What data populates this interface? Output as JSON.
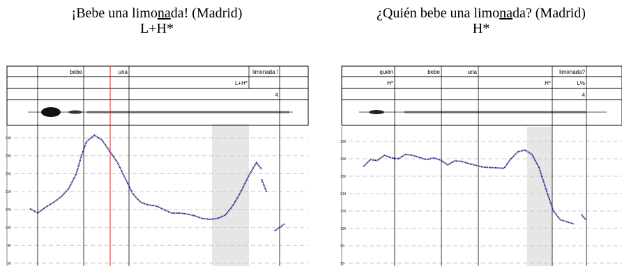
{
  "panels": [
    {
      "title_pre": "¡Bebe una limo",
      "title_u": "na",
      "title_post": "da! (Madrid)",
      "accent": "L+H*",
      "words": [
        "bebe",
        "una",
        "limonada !"
      ],
      "tones": [
        "L+H*"
      ],
      "break_index": "4",
      "yticks": [
        "330",
        "290",
        "250",
        "210",
        "170",
        "130",
        "90",
        "50"
      ],
      "f0_color": "#1a1a80",
      "cursor_color": "#e02020",
      "highlight_color": "#e6e6e6"
    },
    {
      "title_pre": "¿Quién bebe una limo",
      "title_u": "na",
      "title_post": "da? (Madrid)",
      "accent": "H*",
      "words": [
        "quién",
        "bebe",
        "una",
        "limonada?"
      ],
      "tones": [
        "H*",
        "H*",
        "L%"
      ],
      "break_index": "4",
      "yticks": [
        "330",
        "290",
        "250",
        "210",
        "170",
        "130",
        "90",
        "50"
      ],
      "f0_color": "#1a1a80",
      "highlight_color": "#e6e6e6"
    }
  ],
  "chart_data": [
    {
      "type": "line",
      "yticks": [
        330,
        290,
        250,
        210,
        170,
        130,
        90,
        50
      ],
      "series": [
        {
          "x": [
            0.0,
            0.03,
            0.06,
            0.09,
            0.12,
            0.15,
            0.18,
            0.2,
            0.22,
            0.25,
            0.28,
            0.31,
            0.34,
            0.37,
            0.4,
            0.43,
            0.46,
            0.49,
            0.52,
            0.55,
            0.58,
            0.61,
            0.64,
            0.67,
            0.7
          ],
          "values": [
            172,
            162,
            175,
            185,
            198,
            216,
            250,
            290,
            322,
            336,
            325,
            300,
            275,
            240,
            205,
            186,
            180,
            178,
            170,
            162,
            162,
            160,
            156,
            150,
            148
          ]
        },
        {
          "x": [
            0.7,
            0.73,
            0.76,
            0.79,
            0.82,
            0.85,
            0.88,
            0.9
          ],
          "values": [
            148,
            150,
            158,
            180,
            210,
            245,
            275,
            260
          ]
        },
        {
          "x": [
            0.9,
            0.92
          ],
          "values": [
            238,
            208
          ]
        },
        {
          "x": [
            0.95,
            0.97,
            0.99
          ],
          "values": [
            122,
            130,
            138
          ]
        }
      ]
    },
    {
      "type": "line",
      "yticks": [
        330,
        290,
        250,
        210,
        170,
        130,
        90,
        50
      ],
      "series": [
        {
          "x": [
            0.0,
            0.03,
            0.06,
            0.09,
            0.12,
            0.15,
            0.18,
            0.21,
            0.24,
            0.27,
            0.3,
            0.33,
            0.36,
            0.39,
            0.42,
            0.45,
            0.48,
            0.51,
            0.54,
            0.57,
            0.6,
            0.63,
            0.66,
            0.69
          ],
          "values": [
            272,
            288,
            286,
            298,
            292,
            290,
            300,
            298,
            293,
            288,
            292,
            287,
            276,
            285,
            284,
            279,
            275,
            271,
            270,
            269,
            268,
            290,
            306,
            310
          ]
        },
        {
          "x": [
            0.69,
            0.72,
            0.75,
            0.78,
            0.81,
            0.84,
            0.87,
            0.9
          ],
          "values": [
            310,
            300,
            270,
            220,
            172,
            150,
            145,
            140
          ]
        },
        {
          "x": [
            0.93,
            0.95
          ],
          "values": [
            162,
            150
          ]
        }
      ]
    }
  ]
}
